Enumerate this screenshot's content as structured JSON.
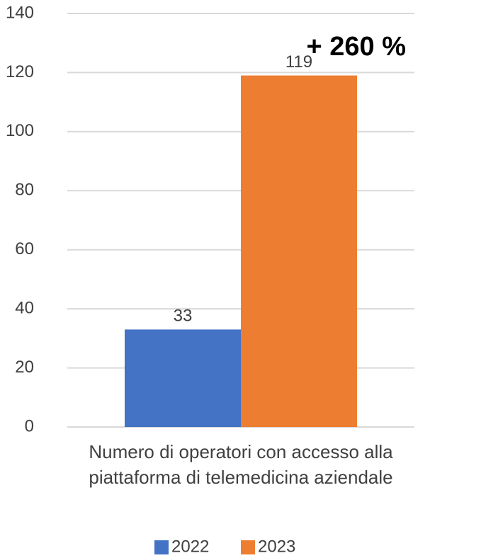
{
  "chart_data": {
    "type": "bar",
    "annotation": "+ 260 %",
    "categories": [
      "Numero di operatori con accesso alla piattaforma di telemedicina aziendale"
    ],
    "series": [
      {
        "name": "2022",
        "color": "#4472c4",
        "values": [
          33
        ]
      },
      {
        "name": "2023",
        "color": "#ed7d31",
        "values": [
          119
        ]
      }
    ],
    "ylim": [
      0,
      140
    ],
    "yticks": [
      0,
      20,
      40,
      60,
      80,
      100,
      120,
      140
    ],
    "grid": true,
    "legend": "bottom"
  }
}
